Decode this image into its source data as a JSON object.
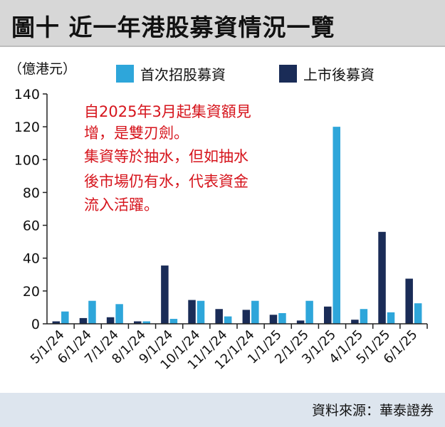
{
  "header": {
    "title": "圖十 近一年港股募資情況一覽"
  },
  "footer": {
    "source": "資料來源：華泰證券"
  },
  "colors": {
    "ipo": "#2ea6da",
    "follow_on": "#1a2c57",
    "annotation": "#d6141c"
  },
  "chart_data": {
    "type": "bar",
    "ylabel": "（億港元）",
    "ylim": [
      0,
      140
    ],
    "yticks": [
      0,
      20,
      40,
      60,
      80,
      100,
      120,
      140
    ],
    "grid": false,
    "legend_position": "top",
    "categories": [
      "5/1/24",
      "6/1/24",
      "7/1/24",
      "8/1/24",
      "9/1/24",
      "10/1/24",
      "11/1/24",
      "12/1/24",
      "1/1/25",
      "2/1/25",
      "3/1/25",
      "4/1/25",
      "5/1/25",
      "6/1/25"
    ],
    "series": [
      {
        "name": "首次招股募資",
        "color": "#2ea6da",
        "values": [
          7.5,
          14,
          12,
          1.5,
          3,
          14,
          4.5,
          14,
          6.5,
          14,
          120,
          9,
          7,
          12.5
        ]
      },
      {
        "name": "上市後募資",
        "color": "#1a2c57",
        "values": [
          1.5,
          3.5,
          4,
          1.5,
          35.5,
          14.5,
          9,
          8.5,
          5.5,
          2,
          10.5,
          2.5,
          56,
          27.5
        ]
      }
    ],
    "annotation": [
      "自2025年3月起集資額見",
      "增，是雙刃劍。",
      "集資等於抽水，但如抽水",
      "後市場仍有水，代表資金",
      "流入活躍。"
    ]
  }
}
